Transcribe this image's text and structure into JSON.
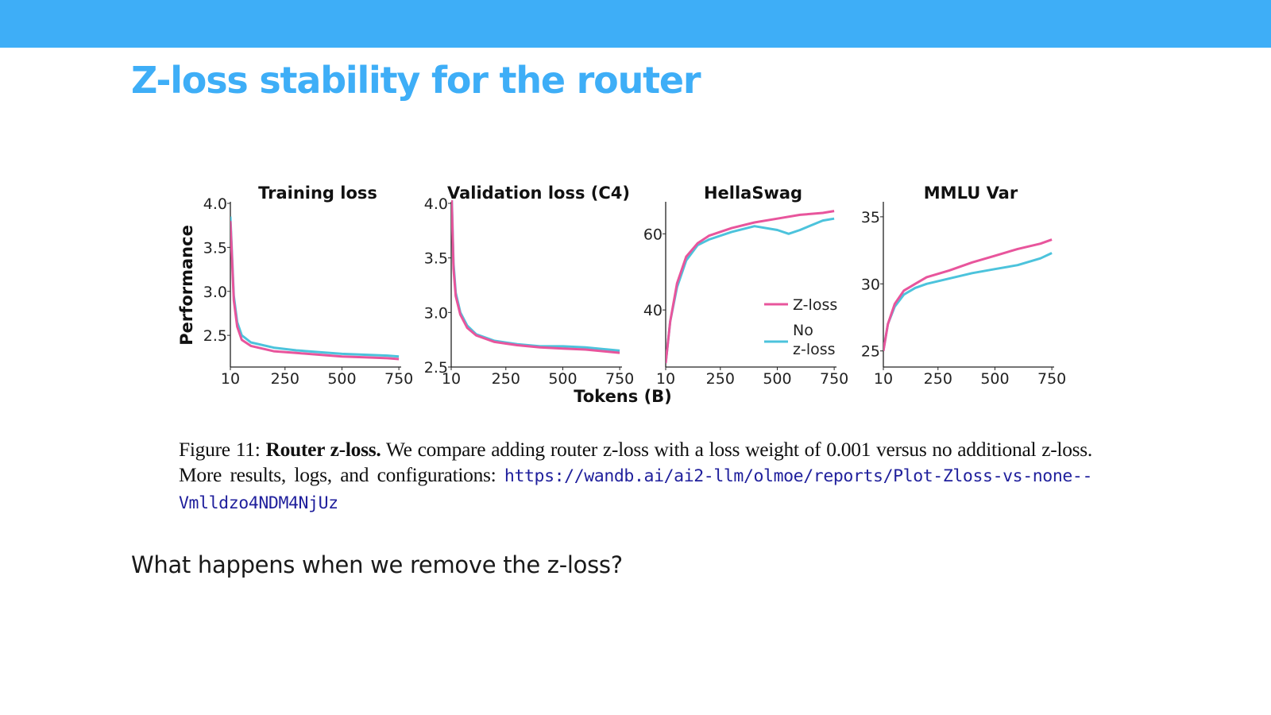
{
  "slide": {
    "title": "Z-loss stability for the router",
    "question": "What happens when we remove the z-loss?"
  },
  "colors": {
    "accent": "#3eaef7",
    "zloss": "#e8559c",
    "no_zloss": "#4cc3dc"
  },
  "figure": {
    "caption_prefix": "Figure 11:",
    "caption_bold": "Router z-loss.",
    "caption_text": "We compare adding router z-loss with a loss weight of 0.001 versus no additional z-loss. More results, logs, and configurations:",
    "caption_link": "https://wandb.ai/ai2-llm/olmoe/reports/Plot-Zloss-vs-none--Vmlldzo4NDM4NjUz"
  },
  "chart_data": [
    {
      "type": "line",
      "title": "Training loss",
      "ylabel": "Performance",
      "xlabel": "",
      "xlim": [
        10,
        760
      ],
      "ylim": [
        2.14,
        4.0
      ],
      "xticks": [
        "10",
        "250",
        "500",
        "750"
      ],
      "yticks": [
        "4.0",
        "3.5",
        "3.0",
        "2.5"
      ],
      "series": [
        {
          "name": "Z-loss",
          "points": [
            [
              10,
              3.8
            ],
            [
              25,
              2.9
            ],
            [
              40,
              2.6
            ],
            [
              60,
              2.45
            ],
            [
              100,
              2.38
            ],
            [
              200,
              2.32
            ],
            [
              300,
              2.3
            ],
            [
              400,
              2.28
            ],
            [
              500,
              2.26
            ],
            [
              600,
              2.25
            ],
            [
              700,
              2.24
            ],
            [
              750,
              2.23
            ]
          ]
        },
        {
          "name": "No z-loss",
          "points": [
            [
              10,
              3.85
            ],
            [
              25,
              2.95
            ],
            [
              40,
              2.65
            ],
            [
              60,
              2.5
            ],
            [
              100,
              2.42
            ],
            [
              200,
              2.36
            ],
            [
              300,
              2.33
            ],
            [
              400,
              2.31
            ],
            [
              500,
              2.29
            ],
            [
              600,
              2.28
            ],
            [
              700,
              2.27
            ],
            [
              750,
              2.26
            ]
          ]
        }
      ]
    },
    {
      "type": "line",
      "title": "Validation loss (C4)",
      "xlabel": "",
      "xlim": [
        10,
        760
      ],
      "ylim": [
        2.5,
        4.0
      ],
      "xticks": [
        "10",
        "250",
        "500",
        "750"
      ],
      "yticks": [
        "4.0",
        "3.5",
        "3.0",
        "2.5"
      ],
      "series": [
        {
          "name": "Z-loss",
          "points": [
            [
              10,
              4.2
            ],
            [
              20,
              3.4
            ],
            [
              30,
              3.15
            ],
            [
              50,
              2.98
            ],
            [
              80,
              2.86
            ],
            [
              120,
              2.79
            ],
            [
              200,
              2.73
            ],
            [
              300,
              2.7
            ],
            [
              400,
              2.68
            ],
            [
              500,
              2.67
            ],
            [
              600,
              2.66
            ],
            [
              700,
              2.64
            ],
            [
              750,
              2.63
            ]
          ]
        },
        {
          "name": "No z-loss",
          "points": [
            [
              10,
              4.25
            ],
            [
              20,
              3.45
            ],
            [
              30,
              3.18
            ],
            [
              50,
              3.0
            ],
            [
              80,
              2.88
            ],
            [
              120,
              2.8
            ],
            [
              200,
              2.74
            ],
            [
              300,
              2.71
            ],
            [
              400,
              2.69
            ],
            [
              500,
              2.69
            ],
            [
              600,
              2.68
            ],
            [
              700,
              2.66
            ],
            [
              750,
              2.65
            ]
          ]
        }
      ]
    },
    {
      "type": "line",
      "title": "HellaSwag",
      "xlabel": "Tokens (B)",
      "xlim": [
        10,
        760
      ],
      "ylim": [
        25,
        68
      ],
      "xticks": [
        "10",
        "250",
        "500",
        "750"
      ],
      "yticks": [
        "60",
        "40"
      ],
      "legend": "lower-right",
      "series": [
        {
          "name": "Z-loss",
          "points": [
            [
              10,
              26
            ],
            [
              30,
              37
            ],
            [
              60,
              47
            ],
            [
              100,
              54
            ],
            [
              150,
              57.5
            ],
            [
              200,
              59.5
            ],
            [
              300,
              61.5
            ],
            [
              400,
              63
            ],
            [
              500,
              64
            ],
            [
              600,
              65
            ],
            [
              700,
              65.5
            ],
            [
              750,
              66
            ]
          ]
        },
        {
          "name": "No z-loss",
          "points": [
            [
              10,
              26
            ],
            [
              30,
              37
            ],
            [
              60,
              46
            ],
            [
              100,
              53
            ],
            [
              150,
              57
            ],
            [
              200,
              58.5
            ],
            [
              300,
              60.5
            ],
            [
              400,
              62
            ],
            [
              500,
              61
            ],
            [
              550,
              60
            ],
            [
              600,
              61
            ],
            [
              700,
              63.5
            ],
            [
              750,
              64
            ]
          ]
        }
      ]
    },
    {
      "type": "line",
      "title": "MMLU Var",
      "xlabel": "",
      "xlim": [
        10,
        760
      ],
      "ylim": [
        23.8,
        36
      ],
      "xticks": [
        "10",
        "250",
        "500",
        "750"
      ],
      "yticks": [
        "35",
        "30",
        "25"
      ],
      "series": [
        {
          "name": "Z-loss",
          "points": [
            [
              10,
              25
            ],
            [
              30,
              27
            ],
            [
              60,
              28.5
            ],
            [
              100,
              29.5
            ],
            [
              150,
              30
            ],
            [
              200,
              30.5
            ],
            [
              300,
              31
            ],
            [
              400,
              31.6
            ],
            [
              500,
              32.1
            ],
            [
              600,
              32.6
            ],
            [
              700,
              33
            ],
            [
              750,
              33.3
            ]
          ]
        },
        {
          "name": "No z-loss",
          "points": [
            [
              10,
              25
            ],
            [
              30,
              27
            ],
            [
              60,
              28.3
            ],
            [
              100,
              29.2
            ],
            [
              150,
              29.7
            ],
            [
              200,
              30
            ],
            [
              300,
              30.4
            ],
            [
              400,
              30.8
            ],
            [
              500,
              31.1
            ],
            [
              600,
              31.4
            ],
            [
              700,
              31.9
            ],
            [
              750,
              32.3
            ]
          ]
        }
      ]
    }
  ]
}
